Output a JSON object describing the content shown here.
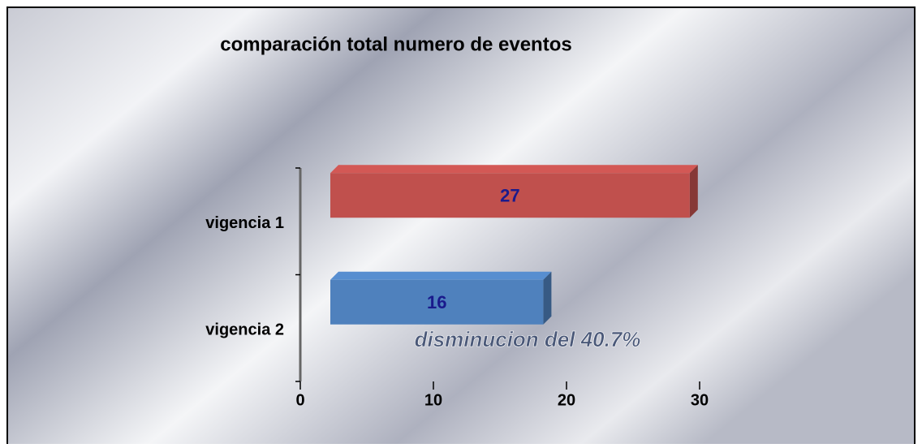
{
  "chart_data": {
    "type": "bar",
    "orientation": "horizontal",
    "title": "comparación total numero de eventos",
    "categories": [
      "vigencia 1",
      "vigencia 2"
    ],
    "values": [
      27,
      16
    ],
    "colors": [
      "#c0504d",
      "#4f81bd"
    ],
    "xlim": [
      0,
      30
    ],
    "xticks": [
      0,
      10,
      20,
      30
    ],
    "grid": false,
    "annotation": "disminucion del 40.7%"
  }
}
